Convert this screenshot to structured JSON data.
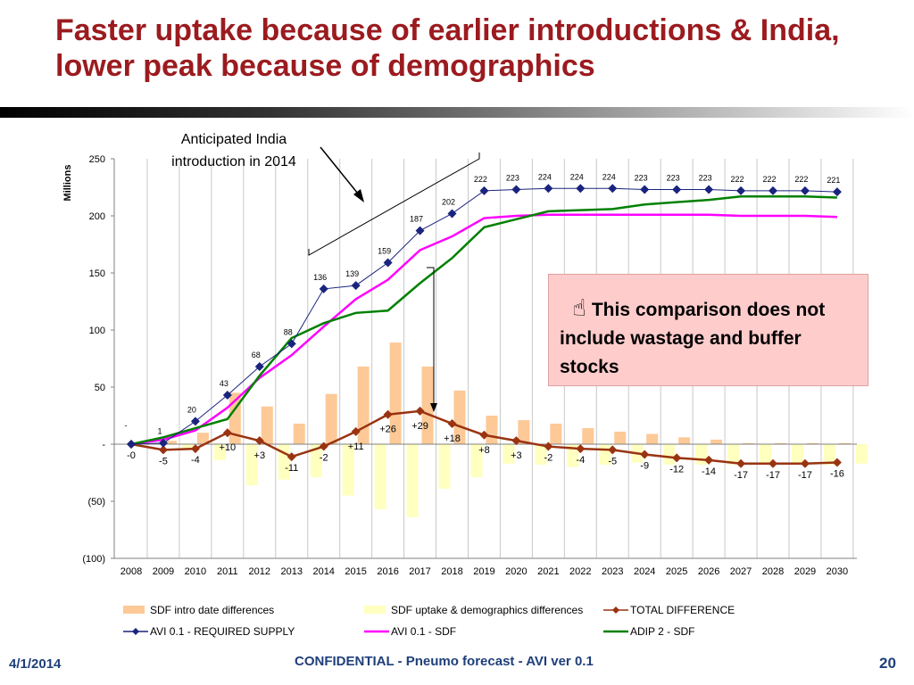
{
  "slide": {
    "title": "Faster uptake because of earlier introductions & India, lower peak because of demographics",
    "annotation": "Anticipated India introduction in 2014",
    "callout_icon": "pointing-hand-icon",
    "callout_glyph": "☝",
    "callout_text": "This comparison does not include wastage and buffer stocks",
    "footer_date": "4/1/2014",
    "footer_center": "CONFIDENTIAL - Pneumo forecast - AVI ver 0.1",
    "footer_page": "20"
  },
  "chart_data": {
    "type": "bar",
    "ylabel": "Millions",
    "ylim": [
      -100,
      250
    ],
    "yticks": [
      {
        "value": 250,
        "label": "250"
      },
      {
        "value": 200,
        "label": "200"
      },
      {
        "value": 150,
        "label": "150"
      },
      {
        "value": 100,
        "label": "100"
      },
      {
        "value": 50,
        "label": "50"
      },
      {
        "value": 0,
        "label": "-"
      },
      {
        "value": -50,
        "label": "(50)"
      },
      {
        "value": -100,
        "label": "(100)"
      }
    ],
    "categories": [
      "2008",
      "2009",
      "2010",
      "2011",
      "2012",
      "2013",
      "2014",
      "2015",
      "2016",
      "2017",
      "2018",
      "2019",
      "2020",
      "2021",
      "2022",
      "2023",
      "2024",
      "2025",
      "2026",
      "2027",
      "2028",
      "2029",
      "2030"
    ],
    "grid": "vertical",
    "legend_position": "bottom",
    "bars": [
      {
        "name": "SDF intro date differences",
        "color": "#fcc997",
        "values": [
          0,
          3,
          10,
          45,
          33,
          18,
          44,
          68,
          89,
          68,
          47,
          25,
          21,
          18,
          14,
          11,
          9,
          6,
          4,
          1,
          1,
          1,
          1
        ]
      },
      {
        "name": "SDF uptake & demographics differences",
        "color": "#ffffbf",
        "values": [
          0,
          -4,
          -14,
          -36,
          -31,
          -29,
          -45,
          -57,
          -64,
          -39,
          -29,
          -17,
          -18,
          -20,
          -18,
          -16,
          -18,
          -18,
          -18,
          -18,
          -18,
          -18,
          -17
        ]
      }
    ],
    "lines": [
      {
        "name": "TOTAL DIFFERENCE",
        "color": "#993311",
        "marker": "diamond",
        "values": [
          0,
          -5,
          -4,
          10,
          3,
          -11,
          -2,
          11,
          26,
          29,
          18,
          8,
          3,
          -2,
          -4,
          -5,
          -9,
          -12,
          -14,
          -17,
          -17,
          -17,
          -16
        ],
        "labels": [
          "-0",
          "-5",
          "-4",
          "+10",
          "+3",
          "-11",
          "-2",
          "+11",
          "+26",
          "+29",
          "+18",
          "+8",
          "+3",
          "-2",
          "-4",
          "-5",
          "-9",
          "-12",
          "-14",
          "-17",
          "-17",
          "-17",
          "-16"
        ]
      },
      {
        "name": "AVI 0.1 - REQUIRED SUPPLY",
        "color": "#1a237e",
        "marker": "diamond",
        "values": [
          0,
          1,
          20,
          43,
          68,
          88,
          136,
          139,
          159,
          187,
          202,
          222,
          223,
          224,
          224,
          224,
          223,
          223,
          223,
          222,
          222,
          222,
          221
        ],
        "labels": [
          "-",
          "1",
          "20",
          "43",
          "68",
          "88",
          "136",
          "139",
          "159",
          "187",
          "202",
          "222",
          "223",
          "224",
          "224",
          "224",
          "223",
          "223",
          "223",
          "222",
          "222",
          "222",
          "221"
        ]
      },
      {
        "name": "AVI 0.1 - SDF",
        "color": "#ff00ff",
        "marker": "none",
        "values": [
          0,
          4,
          12,
          32,
          58,
          78,
          103,
          127,
          144,
          170,
          182,
          198,
          200,
          201,
          201,
          201,
          201,
          201,
          201,
          200,
          200,
          200,
          199
        ]
      },
      {
        "name": "ADIP 2 - SDF",
        "color": "#008000",
        "marker": "none",
        "values": [
          0,
          6,
          14,
          22,
          60,
          93,
          106,
          115,
          117,
          141,
          163,
          190,
          197,
          204,
          205,
          206,
          210,
          212,
          214,
          217,
          217,
          217,
          216
        ]
      }
    ]
  }
}
